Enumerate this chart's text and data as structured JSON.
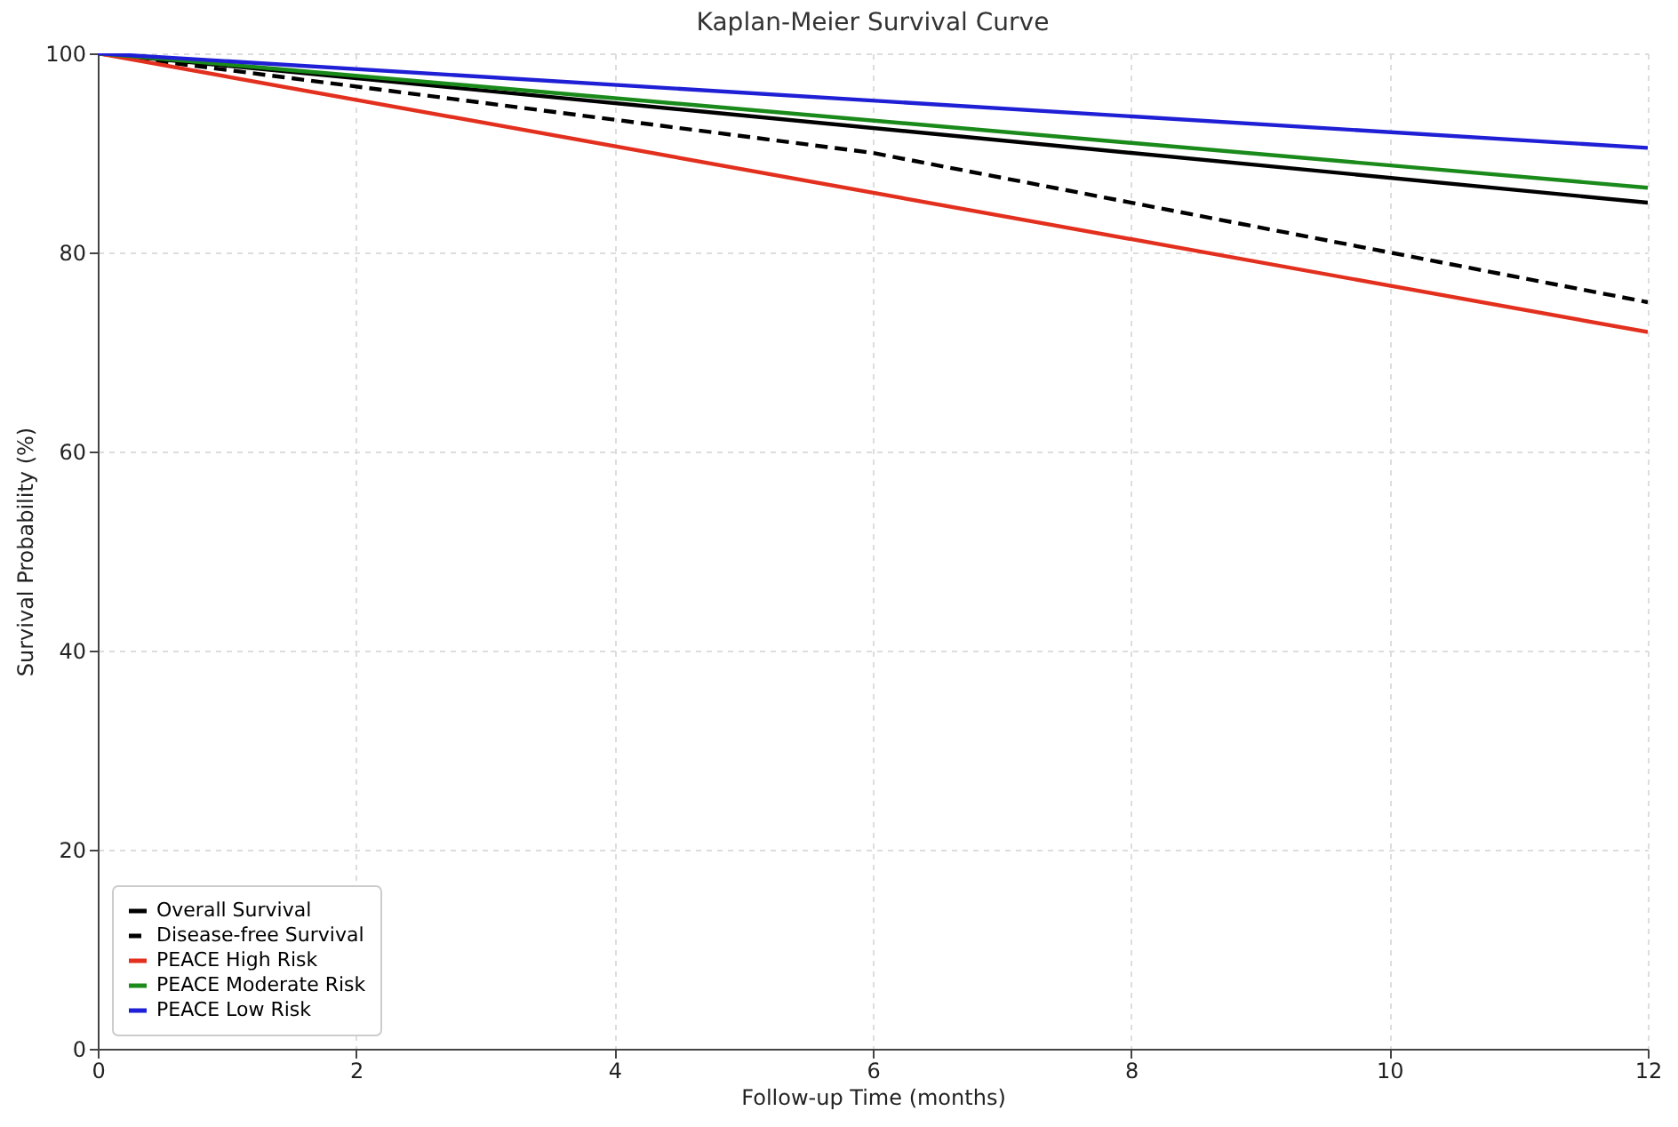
{
  "chart_data": {
    "type": "line",
    "title": "Kaplan-Meier Survival Curve",
    "xlabel": "Follow-up Time (months)",
    "ylabel": "Survival Probability (%)",
    "series": [
      {
        "name": "Overall Survival",
        "color": "#000000",
        "line_style": "solid",
        "x": [
          0,
          12
        ],
        "values": [
          100,
          85
        ]
      },
      {
        "name": "Disease-free Survival",
        "color": "#000000",
        "line_style": "dashed",
        "x": [
          0,
          6,
          12
        ],
        "values": [
          100,
          90,
          75
        ]
      },
      {
        "name": "PEACE High Risk",
        "color": "#e3301e",
        "line_style": "solid",
        "x": [
          0,
          12
        ],
        "values": [
          100,
          72
        ]
      },
      {
        "name": "PEACE Moderate Risk",
        "color": "#1a8a1a",
        "line_style": "solid",
        "x": [
          0,
          12
        ],
        "values": [
          100,
          86.5
        ]
      },
      {
        "name": "PEACE Low Risk",
        "color": "#1f1fd6",
        "line_style": "solid",
        "x": [
          0,
          12
        ],
        "values": [
          100,
          90.5
        ]
      }
    ],
    "xlim": [
      0,
      12
    ],
    "ylim": [
      0,
      100
    ],
    "xticks": [
      0,
      2,
      4,
      6,
      8,
      10,
      12
    ],
    "yticks": [
      0,
      20,
      40,
      60,
      80,
      100
    ],
    "grid": true,
    "legend": "bottom left"
  }
}
